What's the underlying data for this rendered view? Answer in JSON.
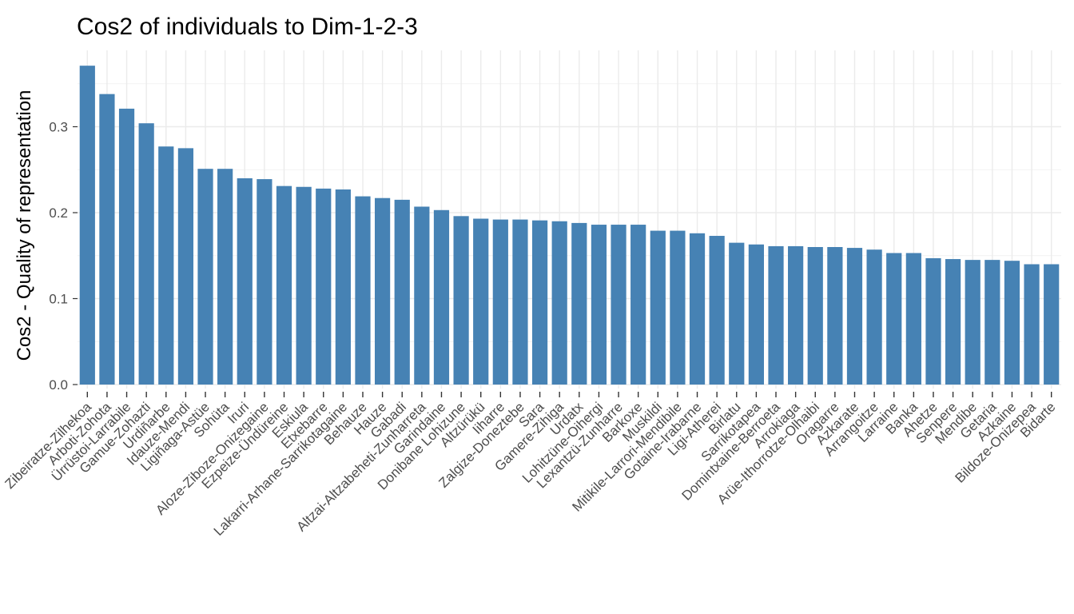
{
  "chart_data": {
    "type": "bar",
    "title": "Cos2 of individuals to Dim-1-2-3",
    "xlabel": "",
    "ylabel": "Cos2 - Quality of representation",
    "ylim": [
      0,
      0.385
    ],
    "yticks": [
      "0.0",
      "0.1",
      "0.2",
      "0.3"
    ],
    "grid": true,
    "bar_color": "#4682B4",
    "categories": [
      "Zibeiratze-Zilhekoa",
      "Arboti-Zohota",
      "Ürrüstoi-Larrabile",
      "Gamue-Zohazti",
      "Urdiñarbe",
      "Idauze-Mendi",
      "Ligiñaga-Astüe",
      "Sohüta",
      "Iruri",
      "Aloze-Ziboze-Onizegaine",
      "Ezpeize-Ündüreine",
      "Eskiula",
      "Etxebarre",
      "Lakarri-Arhane-Sarrikotagaine",
      "Behauze",
      "Hauze",
      "Gabadi",
      "Altzai-Altzabeheti-Zunharreta",
      "Garindaine",
      "Donibane Lohizune",
      "Altzürükü",
      "Iiharre",
      "Zalgize-Doneztebe",
      "Sara",
      "Gamere-Zihiga",
      "Urdatx",
      "Lohitzüne-Oihergi",
      "Lexantzü-Zunharre",
      "Barkoxe",
      "Muskildi",
      "Mitikile-Larrori-Mendibile",
      "Gotaine-Irabarne",
      "Ligi-Atherei",
      "Birlatu",
      "Sarrikotapea",
      "Domintxaine-Berroeta",
      "Arrokiaga",
      "Arüe-Ithorrotze-Olhaibi",
      "Oragarre",
      "Azkarate",
      "Arrangoitze",
      "Larraine",
      "Banka",
      "Ahetze",
      "Senpere",
      "Mendibe",
      "Getaria",
      "Azkaine",
      "Bildoze-Onizepea",
      "Bidarte"
    ],
    "values": [
      0.371,
      0.338,
      0.321,
      0.304,
      0.277,
      0.275,
      0.251,
      0.251,
      0.24,
      0.239,
      0.231,
      0.23,
      0.228,
      0.227,
      0.219,
      0.217,
      0.215,
      0.207,
      0.203,
      0.196,
      0.193,
      0.192,
      0.192,
      0.191,
      0.19,
      0.188,
      0.186,
      0.186,
      0.186,
      0.179,
      0.179,
      0.176,
      0.173,
      0.165,
      0.163,
      0.161,
      0.161,
      0.16,
      0.16,
      0.159,
      0.157,
      0.153,
      0.153,
      0.147,
      0.146,
      0.145,
      0.145,
      0.144,
      0.14,
      0.14
    ]
  }
}
